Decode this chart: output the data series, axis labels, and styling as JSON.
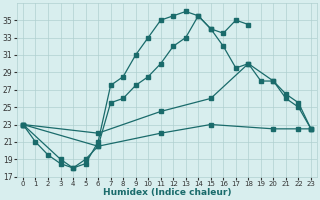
{
  "xlabel": "Humidex (Indice chaleur)",
  "bg_color": "#d8eeee",
  "grid_color": "#b0d0d0",
  "line_color": "#1a6b6b",
  "xlim": [
    -0.5,
    23.5
  ],
  "ylim": [
    17,
    37
  ],
  "yticks": [
    17,
    19,
    21,
    23,
    25,
    27,
    29,
    31,
    33,
    35
  ],
  "xticks": [
    0,
    1,
    2,
    3,
    4,
    5,
    6,
    7,
    8,
    9,
    10,
    11,
    12,
    13,
    14,
    15,
    16,
    17,
    18,
    19,
    20,
    21,
    22,
    23
  ],
  "line1_x": [
    0,
    1,
    2,
    3,
    4,
    5,
    6,
    7,
    8,
    9,
    10,
    11,
    12,
    13,
    14,
    15,
    16,
    17,
    18
  ],
  "line1_y": [
    23,
    21,
    19.5,
    18.5,
    18,
    18.5,
    21,
    27.5,
    28.5,
    31,
    33,
    35,
    35.5,
    36,
    35.5,
    34,
    33.5,
    35,
    34.5
  ],
  "line2_x": [
    0,
    3,
    4,
    5,
    6,
    7,
    8,
    9,
    10,
    11,
    12,
    13,
    14,
    15,
    16,
    17,
    18,
    19,
    20,
    21,
    22,
    23
  ],
  "line2_y": [
    23,
    19,
    18,
    19,
    20.5,
    25.5,
    26,
    27.5,
    28.5,
    30,
    32,
    33,
    35.5,
    34,
    32,
    29.5,
    30,
    28,
    28,
    26,
    25,
    22.5
  ],
  "line3_x": [
    0,
    6,
    11,
    15,
    18,
    20,
    21,
    22,
    23
  ],
  "line3_y": [
    23,
    22,
    24.5,
    26,
    30,
    28,
    26.5,
    25.5,
    22.5
  ],
  "line4_x": [
    0,
    6,
    11,
    15,
    20,
    22,
    23
  ],
  "line4_y": [
    23,
    20.5,
    22,
    23,
    22.5,
    22.5,
    22.5
  ]
}
